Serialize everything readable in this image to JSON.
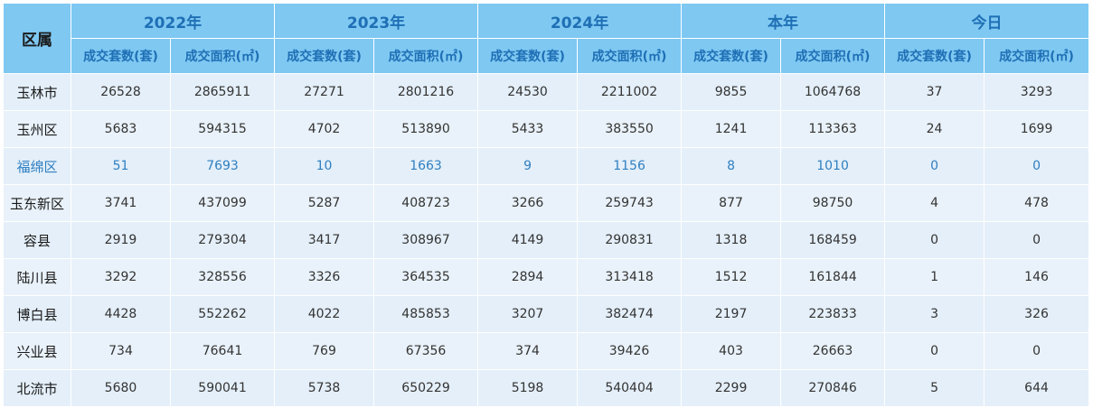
{
  "table": {
    "region_header": "区属",
    "groups": [
      "2022年",
      "2023年",
      "2024年",
      "本年",
      "今日"
    ],
    "sub_headers": [
      "成交套数(套)",
      "成交面积(㎡)"
    ],
    "highlight_row_index": 2,
    "rows": [
      {
        "region": "玉林市",
        "values": [
          "26528",
          "2865911",
          "27271",
          "2801216",
          "24530",
          "2211002",
          "9855",
          "1064768",
          "37",
          "3293"
        ]
      },
      {
        "region": "玉州区",
        "values": [
          "5683",
          "594315",
          "4702",
          "513890",
          "5433",
          "383550",
          "1241",
          "113363",
          "24",
          "1699"
        ]
      },
      {
        "region": "福绵区",
        "values": [
          "51",
          "7693",
          "10",
          "1663",
          "9",
          "1156",
          "8",
          "1010",
          "0",
          "0"
        ]
      },
      {
        "region": "玉东新区",
        "values": [
          "3741",
          "437099",
          "5287",
          "408723",
          "3266",
          "259743",
          "877",
          "98750",
          "4",
          "478"
        ]
      },
      {
        "region": "容县",
        "values": [
          "2919",
          "279304",
          "3417",
          "308967",
          "4149",
          "290831",
          "1318",
          "168459",
          "0",
          "0"
        ]
      },
      {
        "region": "陆川县",
        "values": [
          "3292",
          "328556",
          "3326",
          "364535",
          "2894",
          "313418",
          "1512",
          "161844",
          "1",
          "146"
        ]
      },
      {
        "region": "博白县",
        "values": [
          "4428",
          "552262",
          "4022",
          "485853",
          "3207",
          "382474",
          "2197",
          "223833",
          "3",
          "326"
        ]
      },
      {
        "region": "兴业县",
        "values": [
          "734",
          "76641",
          "769",
          "67356",
          "374",
          "39426",
          "403",
          "26663",
          "0",
          "0"
        ]
      },
      {
        "region": "北流市",
        "values": [
          "5680",
          "590041",
          "5738",
          "650229",
          "5198",
          "540404",
          "2299",
          "270846",
          "5",
          "644"
        ]
      }
    ]
  }
}
